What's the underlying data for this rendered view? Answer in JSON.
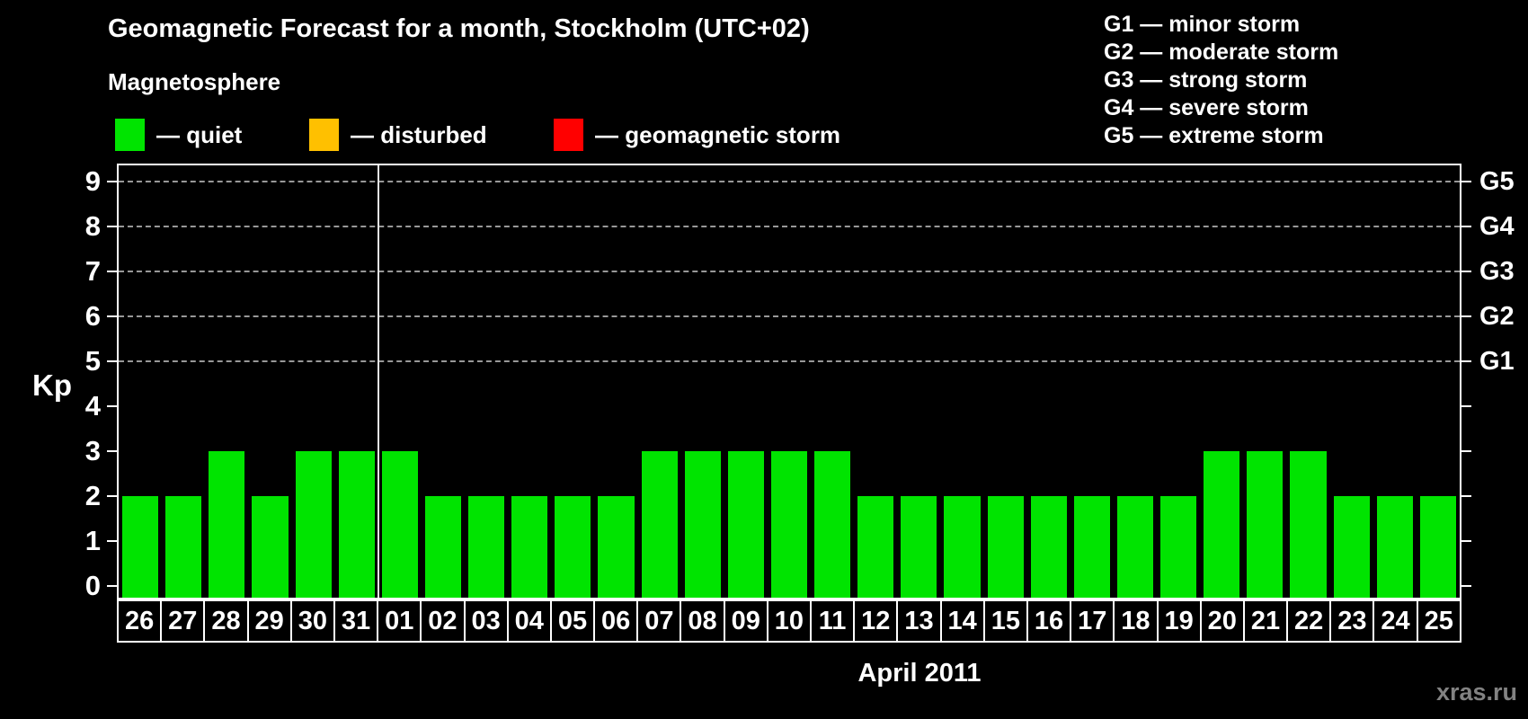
{
  "title": "Geomagnetic Forecast for a month, Stockholm (UTC+02)",
  "subtitle": "Magnetosphere",
  "legend": {
    "items": [
      {
        "name": "quiet",
        "label": "— quiet",
        "color": "#00e400"
      },
      {
        "name": "disturbed",
        "label": "— disturbed",
        "color": "#ffc000"
      },
      {
        "name": "geomagnetic-storm",
        "label": "— geomagnetic storm",
        "color": "#ff0000"
      }
    ]
  },
  "storm_scale_legend": [
    "G1 — minor storm",
    "G2 — moderate storm",
    "G3 — strong storm",
    "G4 — severe storm",
    "G5 — extreme storm"
  ],
  "watermark": "xras.ru",
  "chart_data": {
    "type": "bar",
    "title": "Geomagnetic Forecast for a month, Stockholm (UTC+02)",
    "categories": [
      "26",
      "27",
      "28",
      "29",
      "30",
      "31",
      "01",
      "02",
      "03",
      "04",
      "05",
      "06",
      "07",
      "08",
      "09",
      "10",
      "11",
      "12",
      "13",
      "14",
      "15",
      "16",
      "17",
      "18",
      "19",
      "20",
      "21",
      "22",
      "23",
      "24",
      "25"
    ],
    "values": [
      2,
      2,
      3,
      2,
      3,
      3,
      3,
      2,
      2,
      2,
      2,
      2,
      3,
      3,
      3,
      3,
      3,
      2,
      2,
      2,
      2,
      2,
      2,
      2,
      2,
      3,
      3,
      3,
      2,
      2,
      2
    ],
    "bar_color": "#00e400",
    "xlabel": "April 2011",
    "ylabel": "Kp",
    "ylim": [
      0,
      9
    ],
    "yticks": [
      0,
      1,
      2,
      3,
      4,
      5,
      6,
      7,
      8,
      9
    ],
    "gridlines_at": [
      5,
      6,
      7,
      8,
      9
    ],
    "grid_style": "dashed",
    "month_boundary_after": 6,
    "right_axis": [
      {
        "kp": 5,
        "label": "G1"
      },
      {
        "kp": 6,
        "label": "G2"
      },
      {
        "kp": 7,
        "label": "G3"
      },
      {
        "kp": 8,
        "label": "G4"
      },
      {
        "kp": 9,
        "label": "G5"
      }
    ],
    "legend_position": "top-left"
  }
}
